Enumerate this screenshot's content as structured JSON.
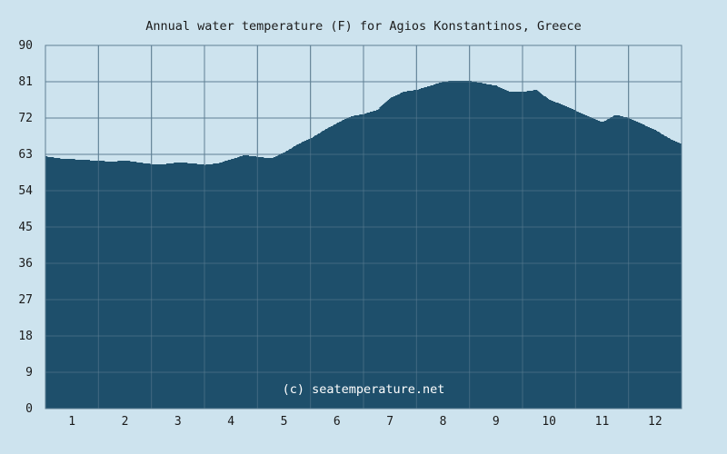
{
  "chart_data": {
    "type": "area",
    "title": "Annual water temperature (F) for Agios Konstantinos, Greece",
    "watermark": "(c) seatemperature.net",
    "xlabel": "",
    "ylabel": "",
    "ylim": [
      0,
      90
    ],
    "yticks": [
      0,
      9,
      18,
      27,
      36,
      45,
      54,
      63,
      72,
      81,
      90
    ],
    "xlim": [
      0.5,
      12.5
    ],
    "xticks": [
      1,
      2,
      3,
      4,
      5,
      6,
      7,
      8,
      9,
      10,
      11,
      12
    ],
    "grid": true,
    "colors": {
      "background": "#cde3ee",
      "fill": "#1e4f6b",
      "grid": "#5f7f94"
    },
    "series": [
      {
        "x": [
          0.5,
          0.75,
          1.0,
          1.25,
          1.5,
          1.75,
          2.0,
          2.25,
          2.5,
          2.75,
          3.0,
          3.25,
          3.5,
          3.75,
          4.0,
          4.25,
          4.5,
          4.75,
          5.0,
          5.25,
          5.5,
          5.75,
          6.0,
          6.25,
          6.5,
          6.75,
          7.0,
          7.25,
          7.5,
          7.75,
          8.0,
          8.25,
          8.5,
          8.75,
          9.0,
          9.25,
          9.5,
          9.75,
          10.0,
          10.25,
          10.5,
          10.75,
          11.0,
          11.25,
          11.5,
          11.75,
          12.0,
          12.25,
          12.5
        ],
        "values": [
          62.5,
          62.0,
          61.8,
          61.6,
          61.4,
          61.2,
          61.5,
          61.0,
          60.6,
          60.6,
          61.0,
          60.8,
          60.4,
          60.8,
          61.8,
          62.8,
          62.4,
          62.0,
          63.5,
          65.5,
          67.0,
          69.0,
          70.8,
          72.4,
          73.0,
          74.0,
          77.0,
          78.5,
          79.0,
          80.0,
          81.0,
          81.3,
          81.2,
          80.6,
          80.0,
          78.5,
          78.5,
          79.0,
          76.5,
          75.3,
          73.8,
          72.3,
          71.0,
          72.8,
          72.0,
          70.5,
          69.0,
          67.0,
          65.5
        ]
      }
    ]
  }
}
